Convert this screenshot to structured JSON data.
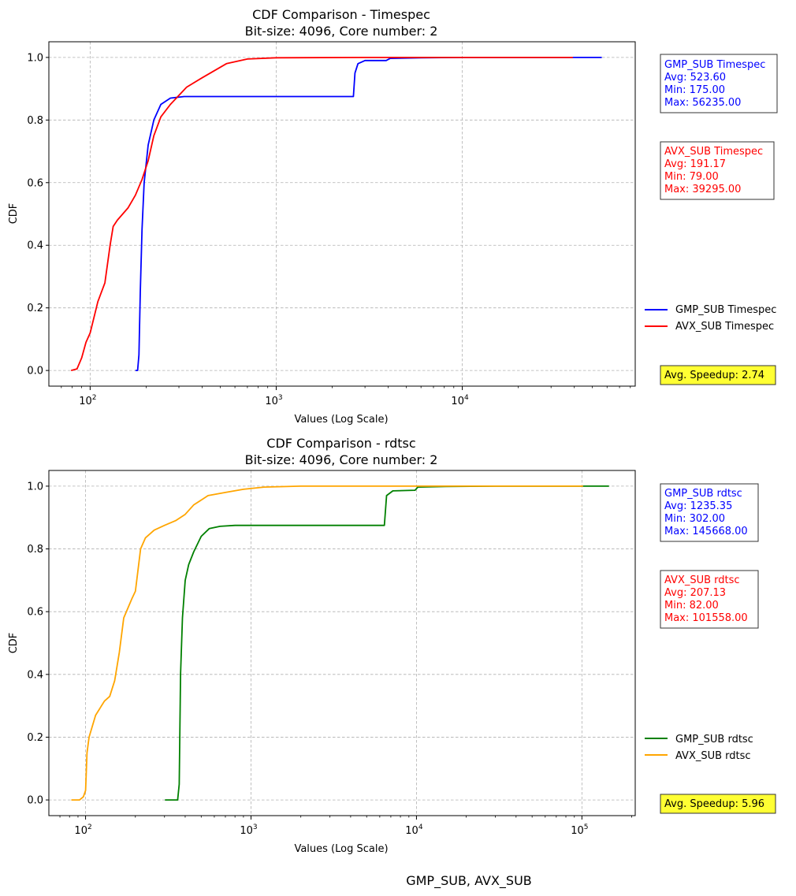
{
  "figure": {
    "caption": "GMP_SUB, AVX_SUB"
  },
  "chart_data": [
    {
      "type": "line",
      "title": "CDF Comparison - Timespec",
      "subtitle": "Bit-size: 4096, Core number: 2",
      "xlabel": "Values (Log Scale)",
      "ylabel": "CDF",
      "xscale": "log",
      "xlim": [
        60,
        85000
      ],
      "ylim": [
        -0.05,
        1.05
      ],
      "xticks": [
        {
          "value": 100,
          "base": "10",
          "exp": "2"
        },
        {
          "value": 1000,
          "base": "10",
          "exp": "3"
        },
        {
          "value": 10000,
          "base": "10",
          "exp": "4"
        }
      ],
      "yticks": [
        "0.0",
        "0.2",
        "0.4",
        "0.6",
        "0.8",
        "1.0"
      ],
      "grid": true,
      "legend": "right",
      "series": [
        {
          "name": "GMP_SUB Timespec",
          "color": "#0000ff",
          "points": [
            [
              175,
              0
            ],
            [
              180,
              0
            ],
            [
              183,
              0.05
            ],
            [
              186,
              0.25
            ],
            [
              190,
              0.45
            ],
            [
              195,
              0.6
            ],
            [
              205,
              0.72
            ],
            [
              220,
              0.8
            ],
            [
              240,
              0.85
            ],
            [
              270,
              0.87
            ],
            [
              320,
              0.875
            ],
            [
              1000,
              0.875
            ],
            [
              2600,
              0.875
            ],
            [
              2650,
              0.95
            ],
            [
              2750,
              0.98
            ],
            [
              3000,
              0.99
            ],
            [
              3900,
              0.99
            ],
            [
              4100,
              0.997
            ],
            [
              6000,
              0.999
            ],
            [
              10000,
              1.0
            ],
            [
              56235,
              1.0
            ]
          ]
        },
        {
          "name": "AVX_SUB Timespec",
          "color": "#ff0000",
          "points": [
            [
              79,
              0
            ],
            [
              85,
              0.005
            ],
            [
              90,
              0.04
            ],
            [
              95,
              0.09
            ],
            [
              100,
              0.12
            ],
            [
              110,
              0.22
            ],
            [
              120,
              0.28
            ],
            [
              128,
              0.4
            ],
            [
              133,
              0.46
            ],
            [
              140,
              0.48
            ],
            [
              160,
              0.52
            ],
            [
              175,
              0.56
            ],
            [
              190,
              0.61
            ],
            [
              205,
              0.67
            ],
            [
              220,
              0.75
            ],
            [
              240,
              0.81
            ],
            [
              270,
              0.85
            ],
            [
              330,
              0.905
            ],
            [
              400,
              0.935
            ],
            [
              540,
              0.98
            ],
            [
              700,
              0.995
            ],
            [
              1000,
              0.999
            ],
            [
              3000,
              1.0
            ],
            [
              39295,
              1.0
            ]
          ]
        }
      ],
      "stats": [
        {
          "label": "GMP_SUB Timespec",
          "avg": "Avg: 523.60",
          "min": "Min: 175.00",
          "max": "Max: 56235.00",
          "color": "#0000ff"
        },
        {
          "label": "AVX_SUB Timespec",
          "avg": "Avg: 191.17",
          "min": "Min: 79.00",
          "max": "Max: 39295.00",
          "color": "#ff0000"
        }
      ],
      "speedup": "Avg. Speedup: 2.74"
    },
    {
      "type": "line",
      "title": "CDF Comparison - rdtsc",
      "subtitle": "Bit-size: 4096, Core number: 2",
      "xlabel": "Values (Log Scale)",
      "ylabel": "CDF",
      "xscale": "log",
      "xlim": [
        60,
        210000
      ],
      "ylim": [
        -0.05,
        1.05
      ],
      "xticks": [
        {
          "value": 100,
          "base": "10",
          "exp": "2"
        },
        {
          "value": 1000,
          "base": "10",
          "exp": "3"
        },
        {
          "value": 10000,
          "base": "10",
          "exp": "4"
        },
        {
          "value": 100000,
          "base": "10",
          "exp": "5"
        }
      ],
      "yticks": [
        "0.0",
        "0.2",
        "0.4",
        "0.6",
        "0.8",
        "1.0"
      ],
      "grid": true,
      "legend": "right",
      "series": [
        {
          "name": "GMP_SUB rdtsc",
          "color": "#008000",
          "points": [
            [
              302,
              0
            ],
            [
              360,
              0
            ],
            [
              368,
              0.05
            ],
            [
              375,
              0.4
            ],
            [
              385,
              0.58
            ],
            [
              400,
              0.7
            ],
            [
              420,
              0.75
            ],
            [
              450,
              0.79
            ],
            [
              500,
              0.84
            ],
            [
              560,
              0.865
            ],
            [
              650,
              0.872
            ],
            [
              800,
              0.875
            ],
            [
              6400,
              0.875
            ],
            [
              6600,
              0.97
            ],
            [
              7200,
              0.985
            ],
            [
              9800,
              0.987
            ],
            [
              10200,
              0.997
            ],
            [
              15000,
              0.999
            ],
            [
              30000,
              1.0
            ],
            [
              145668,
              1.0
            ]
          ]
        },
        {
          "name": "AVX_SUB rdtsc",
          "color": "#ffa500",
          "points": [
            [
              82,
              0
            ],
            [
              92,
              0
            ],
            [
              97,
              0.01
            ],
            [
              100,
              0.03
            ],
            [
              102,
              0.15
            ],
            [
              105,
              0.2
            ],
            [
              115,
              0.27
            ],
            [
              130,
              0.315
            ],
            [
              140,
              0.33
            ],
            [
              150,
              0.38
            ],
            [
              160,
              0.47
            ],
            [
              170,
              0.58
            ],
            [
              190,
              0.64
            ],
            [
              200,
              0.665
            ],
            [
              215,
              0.8
            ],
            [
              230,
              0.835
            ],
            [
              260,
              0.86
            ],
            [
              300,
              0.875
            ],
            [
              350,
              0.89
            ],
            [
              400,
              0.91
            ],
            [
              450,
              0.94
            ],
            [
              550,
              0.97
            ],
            [
              700,
              0.98
            ],
            [
              900,
              0.99
            ],
            [
              1200,
              0.997
            ],
            [
              2000,
              1.0
            ],
            [
              101558,
              1.0
            ]
          ]
        }
      ],
      "stats": [
        {
          "label": "GMP_SUB rdtsc",
          "avg": "Avg: 1235.35",
          "min": "Min: 302.00",
          "max": "Max: 145668.00",
          "color": "#0000ff"
        },
        {
          "label": "AVX_SUB rdtsc",
          "avg": "Avg: 207.13",
          "min": "Min: 82.00",
          "max": "Max: 101558.00",
          "color": "#ff0000"
        }
      ],
      "speedup": "Avg. Speedup: 5.96"
    }
  ]
}
